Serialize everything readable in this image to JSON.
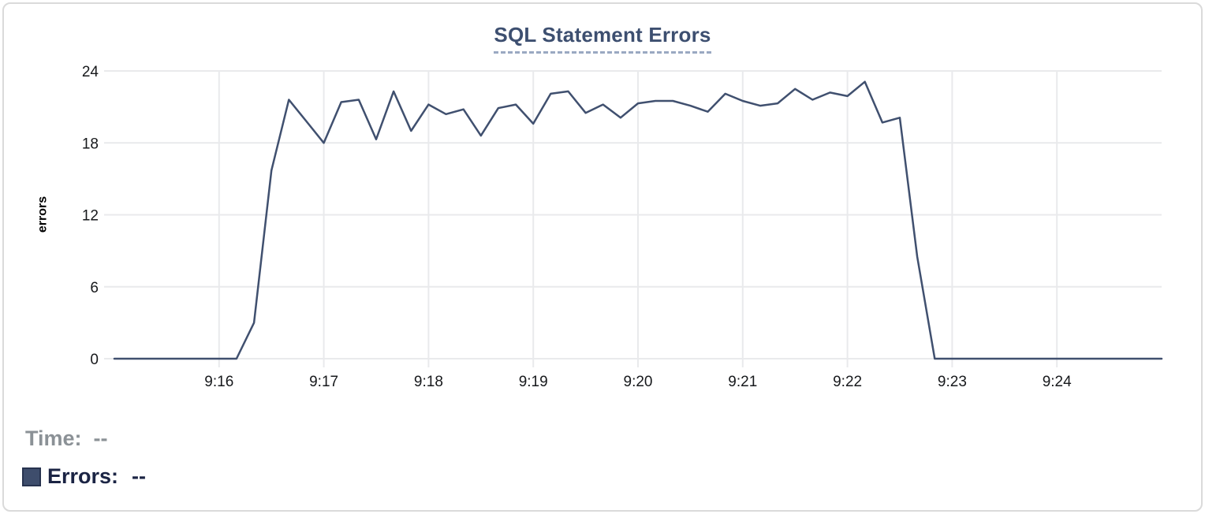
{
  "chart_data": {
    "type": "line",
    "title": "SQL Statement Errors",
    "ylabel": "errors",
    "xlabel": "",
    "x_tick_labels": [
      "9:16",
      "9:17",
      "9:18",
      "9:19",
      "9:20",
      "9:21",
      "9:22",
      "9:23",
      "9:24"
    ],
    "y_tick_labels": [
      0,
      6,
      12,
      18,
      24
    ],
    "ylim": [
      0,
      24
    ],
    "x_range": [
      "9:15:00",
      "9:25:00"
    ],
    "grid": true,
    "legend_position": "bottom-left",
    "series": [
      {
        "name": "Errors",
        "color": "#40506f",
        "points": [
          [
            "9:15:00",
            0
          ],
          [
            "9:15:10",
            0
          ],
          [
            "9:15:20",
            0
          ],
          [
            "9:15:30",
            0
          ],
          [
            "9:15:40",
            0
          ],
          [
            "9:15:50",
            0
          ],
          [
            "9:16:00",
            0
          ],
          [
            "9:16:10",
            0
          ],
          [
            "9:16:20",
            3
          ],
          [
            "9:16:30",
            15.7
          ],
          [
            "9:16:40",
            21.6
          ],
          [
            "9:16:50",
            19.8
          ],
          [
            "9:17:00",
            18
          ],
          [
            "9:17:10",
            21.4
          ],
          [
            "9:17:20",
            21.6
          ],
          [
            "9:17:30",
            18.3
          ],
          [
            "9:17:40",
            22.3
          ],
          [
            "9:17:50",
            19
          ],
          [
            "9:18:00",
            21.2
          ],
          [
            "9:18:10",
            20.4
          ],
          [
            "9:18:20",
            20.8
          ],
          [
            "9:18:30",
            18.6
          ],
          [
            "9:18:40",
            20.9
          ],
          [
            "9:18:50",
            21.2
          ],
          [
            "9:19:00",
            19.6
          ],
          [
            "9:19:10",
            22.1
          ],
          [
            "9:19:20",
            22.3
          ],
          [
            "9:19:30",
            20.5
          ],
          [
            "9:19:40",
            21.2
          ],
          [
            "9:19:50",
            20.1
          ],
          [
            "9:20:00",
            21.3
          ],
          [
            "9:20:10",
            21.5
          ],
          [
            "9:20:20",
            21.5
          ],
          [
            "9:20:30",
            21.1
          ],
          [
            "9:20:40",
            20.6
          ],
          [
            "9:20:50",
            22.1
          ],
          [
            "9:21:00",
            21.5
          ],
          [
            "9:21:10",
            21.1
          ],
          [
            "9:21:20",
            21.3
          ],
          [
            "9:21:30",
            22.5
          ],
          [
            "9:21:40",
            21.6
          ],
          [
            "9:21:50",
            22.2
          ],
          [
            "9:22:00",
            21.9
          ],
          [
            "9:22:10",
            23.1
          ],
          [
            "9:22:20",
            19.7
          ],
          [
            "9:22:30",
            20.1
          ],
          [
            "9:22:40",
            8.5
          ],
          [
            "9:22:50",
            0
          ],
          [
            "9:23:00",
            0
          ],
          [
            "9:23:10",
            0
          ],
          [
            "9:23:20",
            0
          ],
          [
            "9:23:30",
            0
          ],
          [
            "9:23:40",
            0
          ],
          [
            "9:23:50",
            0
          ],
          [
            "9:24:00",
            0
          ],
          [
            "9:24:10",
            0
          ],
          [
            "9:24:20",
            0
          ],
          [
            "9:24:30",
            0
          ],
          [
            "9:24:40",
            0
          ],
          [
            "9:24:50",
            0
          ],
          [
            "9:25:00",
            0
          ]
        ]
      }
    ]
  },
  "readout": {
    "time_label": "Time:",
    "time_value": "--",
    "errors_label": "Errors:",
    "errors_value": "--",
    "swatch_color": "#3e4d6c"
  },
  "colors": {
    "accent_navy": "#3e4d6c",
    "title_navy": "#3d4f70",
    "readout_errors_text": "#1b2444",
    "readout_time_text": "#8b9196",
    "grid_gray": "#e9eaec",
    "tick_text": "#17191c",
    "card_border": "#dadada"
  }
}
